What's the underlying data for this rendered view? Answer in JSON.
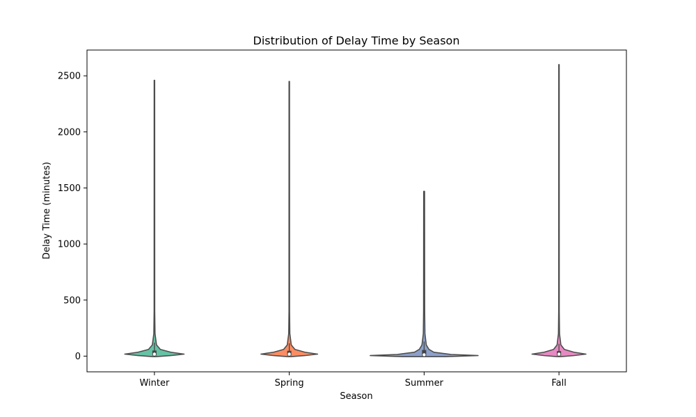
{
  "chart_data": {
    "type": "violin",
    "title": "Distribution of Delay Time by Season",
    "xlabel": "Season",
    "ylabel": "Delay Time (minutes)",
    "categories": [
      "Winter",
      "Spring",
      "Summer",
      "Fall"
    ],
    "colors": [
      "#66c2a5",
      "#fc8d62",
      "#8da0cb",
      "#e78ac3"
    ],
    "ylim": [
      -140,
      2730
    ],
    "yticks": [
      0,
      500,
      1000,
      1500,
      2000,
      2500
    ],
    "grid": false,
    "legend": "none",
    "series": [
      {
        "category": "Winter",
        "min": -5,
        "max": 2460,
        "quartiles": [
          5,
          18,
          50
        ],
        "whiskers": [
          -5,
          120
        ],
        "peak": 18,
        "max_half_width": 0.44,
        "density": [
          [
            -5,
            0.05
          ],
          [
            5,
            0.55
          ],
          [
            18,
            1.0
          ],
          [
            35,
            0.55
          ],
          [
            60,
            0.2
          ],
          [
            100,
            0.07
          ],
          [
            200,
            0.02
          ],
          [
            400,
            0.01
          ],
          [
            2460,
            0.008
          ]
        ]
      },
      {
        "category": "Spring",
        "min": -5,
        "max": 2450,
        "quartiles": [
          5,
          18,
          48
        ],
        "whiskers": [
          -5,
          115
        ],
        "peak": 18,
        "max_half_width": 0.42,
        "density": [
          [
            -5,
            0.05
          ],
          [
            5,
            0.55
          ],
          [
            18,
            1.0
          ],
          [
            35,
            0.55
          ],
          [
            60,
            0.2
          ],
          [
            100,
            0.07
          ],
          [
            200,
            0.02
          ],
          [
            400,
            0.01
          ],
          [
            2450,
            0.008
          ]
        ]
      },
      {
        "category": "Summer",
        "min": -5,
        "max": 1470,
        "quartiles": [
          2,
          12,
          55
        ],
        "whiskers": [
          -5,
          130
        ],
        "peak": 5,
        "max_half_width": 0.8,
        "density": [
          [
            -5,
            0.4
          ],
          [
            5,
            1.0
          ],
          [
            15,
            0.5
          ],
          [
            35,
            0.18
          ],
          [
            60,
            0.09
          ],
          [
            100,
            0.04
          ],
          [
            200,
            0.015
          ],
          [
            400,
            0.01
          ],
          [
            1470,
            0.008
          ]
        ]
      },
      {
        "category": "Fall",
        "min": -5,
        "max": 2600,
        "quartiles": [
          5,
          18,
          45
        ],
        "whiskers": [
          -5,
          110
        ],
        "peak": 18,
        "max_half_width": 0.4,
        "density": [
          [
            -5,
            0.05
          ],
          [
            5,
            0.55
          ],
          [
            18,
            1.0
          ],
          [
            35,
            0.55
          ],
          [
            60,
            0.2
          ],
          [
            100,
            0.07
          ],
          [
            200,
            0.02
          ],
          [
            400,
            0.01
          ],
          [
            2600,
            0.008
          ]
        ]
      }
    ]
  }
}
